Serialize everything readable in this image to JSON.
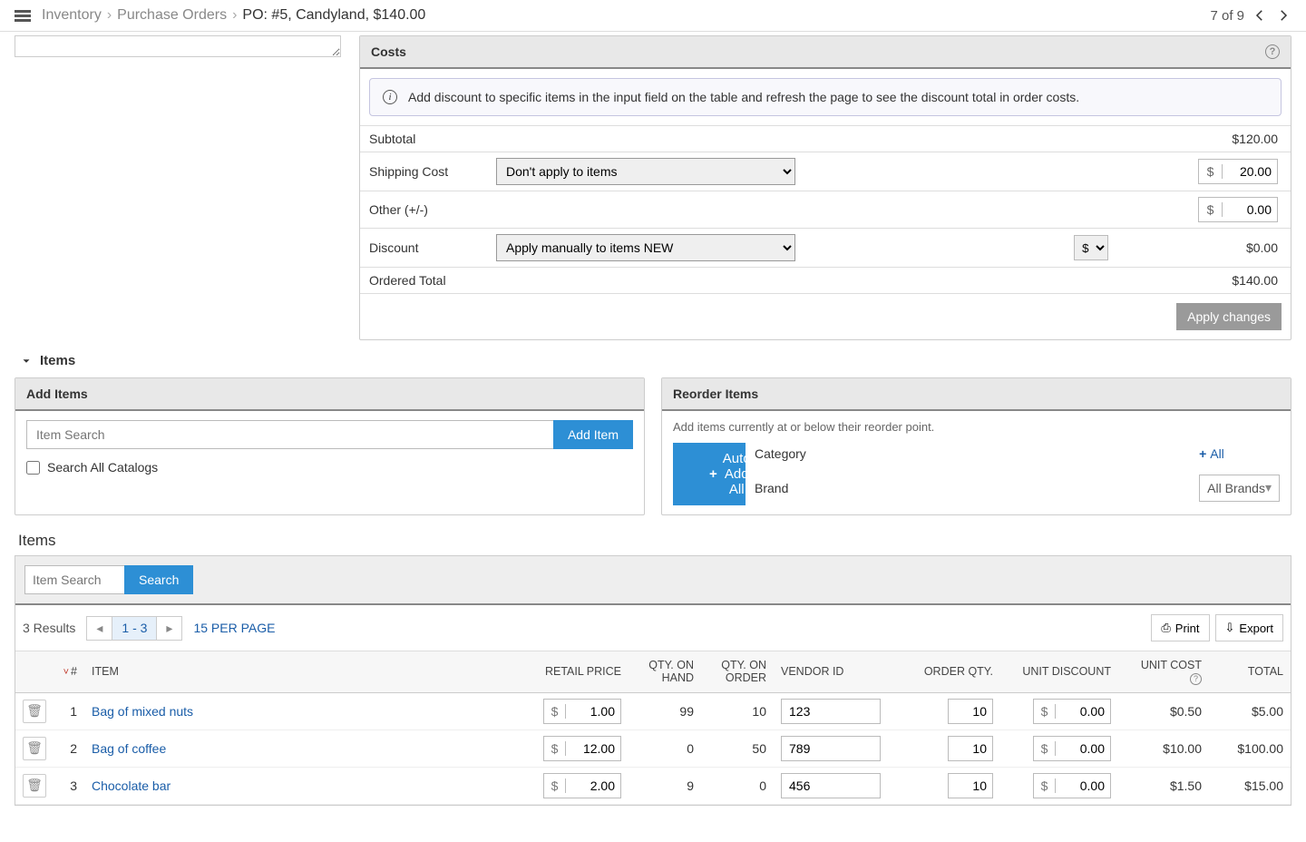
{
  "breadcrumb": {
    "l1": "Inventory",
    "l2": "Purchase Orders",
    "current": "PO: #5, Candyland, $140.00"
  },
  "pager": {
    "label": "7 of 9"
  },
  "costs": {
    "header": "Costs",
    "info": "Add discount to specific items in the input field on the table and refresh the page to see the discount total in order costs.",
    "rows": {
      "subtotal_label": "Subtotal",
      "subtotal_val": "$120.00",
      "shipping_label": "Shipping Cost",
      "shipping_opt": "Don't apply to items",
      "shipping_cur": "$",
      "shipping_val": "20.00",
      "other_label": "Other (+/-)",
      "other_cur": "$",
      "other_val": "0.00",
      "discount_label": "Discount",
      "discount_opt": "Apply manually to items",
      "discount_badge": "NEW",
      "discount_unit": "$",
      "discount_val": "$0.00",
      "total_label": "Ordered Total",
      "total_val": "$140.00"
    },
    "apply_btn": "Apply changes"
  },
  "items_section": {
    "title": "Items"
  },
  "add": {
    "header": "Add Items",
    "placeholder": "Item Search",
    "btn": "Add Item",
    "chk_label": "Search All Catalogs"
  },
  "reorder": {
    "header": "Reorder Items",
    "desc": "Add items currently at or below their reorder point.",
    "cat_label": "Category",
    "cat_all": "All",
    "brand_label": "Brand",
    "brand_all": "All Brands",
    "auto_btn": "Auto Add All"
  },
  "items_list": {
    "title": "Items",
    "search_ph": "Item Search",
    "search_btn": "Search",
    "count": "3 Results",
    "range": "1 - 3",
    "per_page": "15 PER PAGE",
    "print": "Print",
    "export": "Export",
    "cols": {
      "num": "#",
      "item": "ITEM",
      "retail": "RETAIL PRICE",
      "onhand": "QTY. ON HAND",
      "onorder": "QTY. ON ORDER",
      "vendor": "VENDOR ID",
      "orderqty": "ORDER QTY.",
      "unitdisc": "UNIT DISCOUNT",
      "unitcost": "UNIT COST",
      "total": "TOTAL"
    },
    "rows": [
      {
        "n": "1",
        "name": "Bag of mixed nuts",
        "retail": "1.00",
        "onhand": "99",
        "onorder": "10",
        "vendor": "123",
        "qty": "10",
        "disc": "0.00",
        "unit": "$0.50",
        "total": "$5.00"
      },
      {
        "n": "2",
        "name": "Bag of coffee",
        "retail": "12.00",
        "onhand": "0",
        "onorder": "50",
        "vendor": "789",
        "qty": "10",
        "disc": "0.00",
        "unit": "$10.00",
        "total": "$100.00"
      },
      {
        "n": "3",
        "name": "Chocolate bar",
        "retail": "2.00",
        "onhand": "9",
        "onorder": "0",
        "vendor": "456",
        "qty": "10",
        "disc": "0.00",
        "unit": "$1.50",
        "total": "$15.00"
      }
    ]
  }
}
